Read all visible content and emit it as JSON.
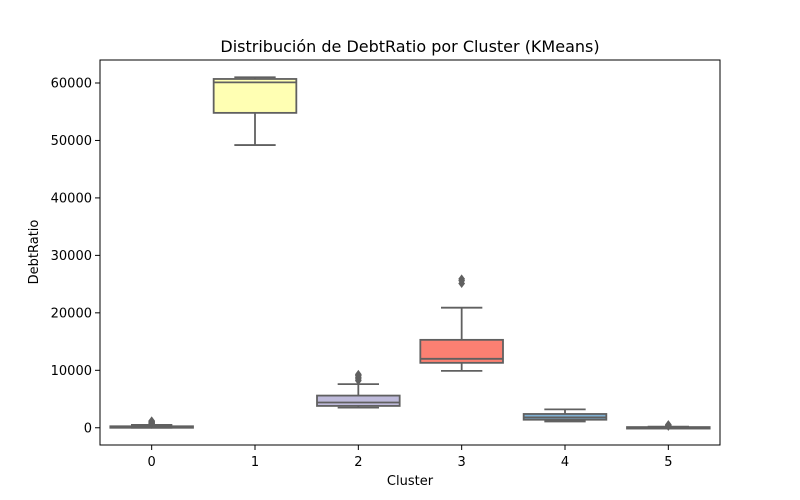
{
  "chart_data": {
    "type": "boxplot",
    "title": "Distribución de DebtRatio por Cluster (KMeans)",
    "xlabel": "Cluster",
    "ylabel": "DebtRatio",
    "categories": [
      "0",
      "1",
      "2",
      "3",
      "4",
      "5"
    ],
    "ylim": [
      -3000,
      64000
    ],
    "yticks": [
      0,
      10000,
      20000,
      30000,
      40000,
      50000,
      60000
    ],
    "grid": false,
    "legend": "none",
    "box_stroke": "#606060",
    "boxes": [
      {
        "category": "0",
        "whisker_low": 0,
        "q1": 40,
        "median": 120,
        "q3": 260,
        "whisker_high": 500,
        "fill": "#8dd3c7",
        "outliers": [
          600,
          700,
          800,
          900,
          1000,
          1100,
          1200
        ]
      },
      {
        "category": "1",
        "whisker_low": 49200,
        "q1": 54800,
        "median": 60100,
        "q3": 60700,
        "whisker_high": 61000,
        "fill": "#ffffb3",
        "outliers": []
      },
      {
        "category": "2",
        "whisker_low": 3500,
        "q1": 3800,
        "median": 4400,
        "q3": 5600,
        "whisker_high": 7600,
        "fill": "#bebada",
        "outliers": [
          8200,
          8500,
          8800,
          9100,
          9300
        ]
      },
      {
        "category": "3",
        "whisker_low": 9900,
        "q1": 11300,
        "median": 12000,
        "q3": 15300,
        "whisker_high": 20900,
        "fill": "#fb8072",
        "outliers": [
          25100,
          25600,
          25900
        ]
      },
      {
        "category": "4",
        "whisker_low": 1100,
        "q1": 1400,
        "median": 1800,
        "q3": 2400,
        "whisker_high": 3200,
        "fill": "#80b1d3",
        "outliers": []
      },
      {
        "category": "5",
        "whisker_low": 0,
        "q1": 20,
        "median": 60,
        "q3": 120,
        "whisker_high": 200,
        "fill": "#fdb462",
        "outliers": [
          250,
          350,
          450,
          550
        ]
      }
    ]
  }
}
